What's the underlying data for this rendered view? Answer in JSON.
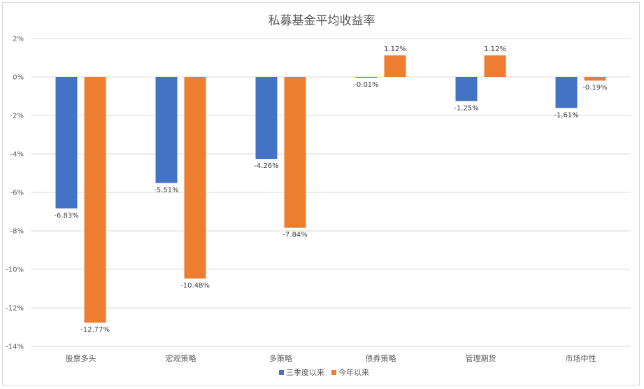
{
  "chart_data": {
    "type": "bar",
    "title": "私募基金平均收益率",
    "xlabel": "",
    "ylabel": "",
    "ylim": [
      -14,
      2
    ],
    "yticks": [
      2,
      0,
      -2,
      -4,
      -6,
      -8,
      -10,
      -12,
      -14
    ],
    "ytick_labels": [
      "2%",
      "0%",
      "-2%",
      "-4%",
      "-6%",
      "-8%",
      "-10%",
      "-12%",
      "-14%"
    ],
    "grid": true,
    "legend_position": "bottom",
    "categories": [
      "股票多头",
      "宏观策略",
      "多策略",
      "债券策略",
      "管理期货",
      "市场中性"
    ],
    "series": [
      {
        "name": "三季度以来",
        "color": "#4472c4",
        "values": [
          -6.83,
          -5.51,
          -4.26,
          -0.01,
          -1.25,
          -1.61
        ],
        "labels": [
          "-6.83%",
          "-5.51%",
          "-4.26%",
          "-0.01%",
          "-1.25%",
          "-1.61%"
        ]
      },
      {
        "name": "今年以来",
        "color": "#ed7d31",
        "values": [
          -12.77,
          -10.48,
          -7.84,
          1.12,
          1.12,
          -0.19
        ],
        "labels": [
          "-12.77%",
          "-10.48%",
          "-7.84%",
          "1.12%",
          "1.12%",
          "-0.19%"
        ]
      }
    ]
  }
}
